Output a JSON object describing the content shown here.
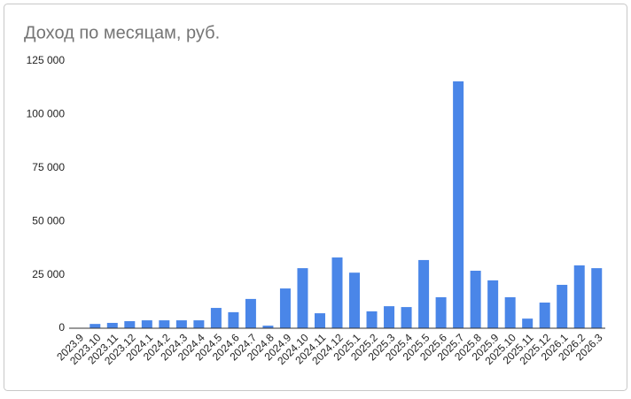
{
  "chart_data": {
    "type": "bar",
    "title": "Доход по месяцам, руб.",
    "categories": [
      "2023.9",
      "2023.10",
      "2023.11",
      "2023.12",
      "2024.1",
      "2024.2",
      "2024.3",
      "2024.4",
      "2024.5",
      "2024.6",
      "2024.7",
      "2024.8",
      "2024.9",
      "2024.10",
      "2024.11",
      "2024.12",
      "2025.1",
      "2025.2",
      "2025.3",
      "2025.4",
      "2025.5",
      "2025.6",
      "2025.7",
      "2025.8",
      "2025.9",
      "2025.10",
      "2025.11",
      "2025.12",
      "2026.1",
      "2026.2",
      "2026.3"
    ],
    "values": [
      0,
      2000,
      2500,
      3300,
      3700,
      3700,
      3700,
      3700,
      9500,
      7500,
      13700,
      1200,
      18600,
      28100,
      7000,
      33100,
      26000,
      7900,
      10300,
      9900,
      31900,
      14500,
      115500,
      26900,
      22400,
      14500,
      4500,
      12000,
      20300,
      29400,
      28100
    ],
    "color": "#4a86e8",
    "ylim": [
      0,
      125000
    ],
    "yticks": [
      0,
      {
        "value": 25000,
        "label": "25 000"
      },
      {
        "value": 50000,
        "label": "50 000"
      },
      {
        "value": 75000,
        "label": "75 000"
      },
      {
        "value": 100000,
        "label": "100 000"
      },
      {
        "value": 125000,
        "label": "125 000"
      }
    ],
    "grid": false
  }
}
